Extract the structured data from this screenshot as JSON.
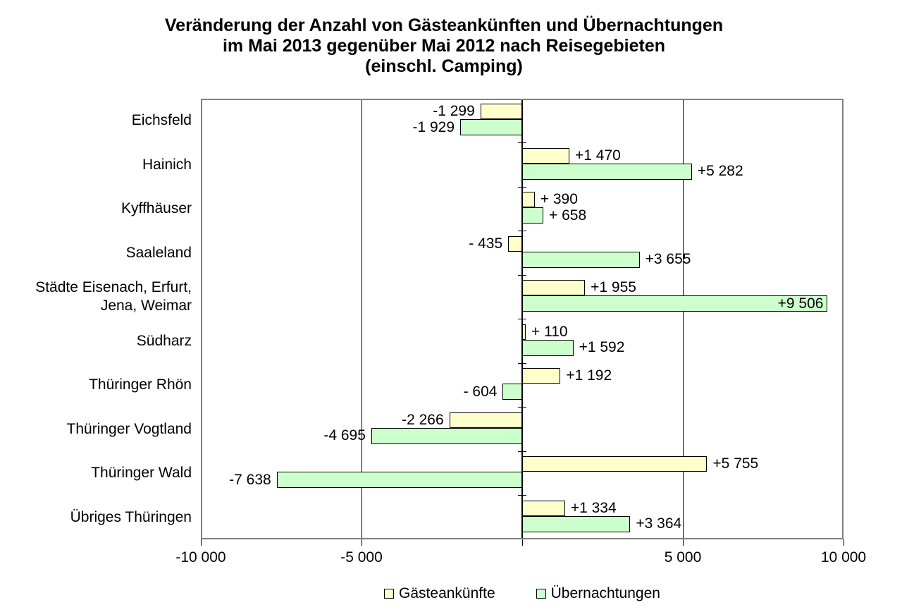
{
  "chart_data": {
    "type": "bar",
    "orientation": "horizontal",
    "title_lines": [
      "Veränderung der Anzahl von Gästeankünften und Übernachtungen",
      "im Mai 2013 gegenüber Mai 2012 nach Reisegebieten",
      "(einschl. Camping)"
    ],
    "categories": [
      {
        "lines": [
          "Eichsfeld"
        ]
      },
      {
        "lines": [
          "Hainich"
        ]
      },
      {
        "lines": [
          "Kyffhäuser"
        ]
      },
      {
        "lines": [
          "Saaleland"
        ]
      },
      {
        "lines": [
          "Städte Eisenach, Erfurt,",
          "Jena, Weimar"
        ]
      },
      {
        "lines": [
          "Südharz"
        ]
      },
      {
        "lines": [
          "Thüringer Rhön"
        ]
      },
      {
        "lines": [
          "Thüringer Vogtland"
        ]
      },
      {
        "lines": [
          "Thüringer Wald"
        ]
      },
      {
        "lines": [
          "Übriges Thüringen"
        ]
      }
    ],
    "series": [
      {
        "name": "Gästeankünfte",
        "color": "#FFFFCC",
        "border_color": "#000000",
        "values": [
          -1299,
          1470,
          390,
          -435,
          1955,
          110,
          1192,
          -2266,
          5755,
          1334
        ],
        "labels": [
          "-1 299",
          "+1 470",
          "+ 390",
          "- 435",
          "+1 955",
          "+ 110",
          "+1 192",
          "-2 266",
          "+5 755",
          "+1 334"
        ],
        "inside_label_indices": []
      },
      {
        "name": "Übernachtungen",
        "color": "#CCFFCC",
        "border_color": "#000000",
        "values": [
          -1929,
          5282,
          658,
          3655,
          9506,
          1592,
          -604,
          -4695,
          -7638,
          3364
        ],
        "labels": [
          "-1 929",
          "+5 282",
          "+ 658",
          "+3 655",
          "+9 506",
          "+1 592",
          "- 604",
          "-4 695",
          "-7 638",
          "+3 364"
        ],
        "inside_label_indices": [
          4
        ]
      }
    ],
    "x_axis": {
      "min": -10000,
      "max": 10000,
      "ticks": [
        {
          "value": -10000,
          "label": "-10 000"
        },
        {
          "value": -5000,
          "label": "-5 000"
        },
        {
          "value": 0,
          "label": ""
        },
        {
          "value": 5000,
          "label": "5 000"
        },
        {
          "value": 10000,
          "label": "10 000"
        }
      ],
      "gridlines": [
        -5000,
        5000
      ]
    },
    "legend": {
      "position": "bottom"
    },
    "colors": {
      "plot_border": "#808080",
      "axis_line": "#000000",
      "gridline": "#000000",
      "text": "#000000",
      "background": "#FFFFFF"
    }
  }
}
